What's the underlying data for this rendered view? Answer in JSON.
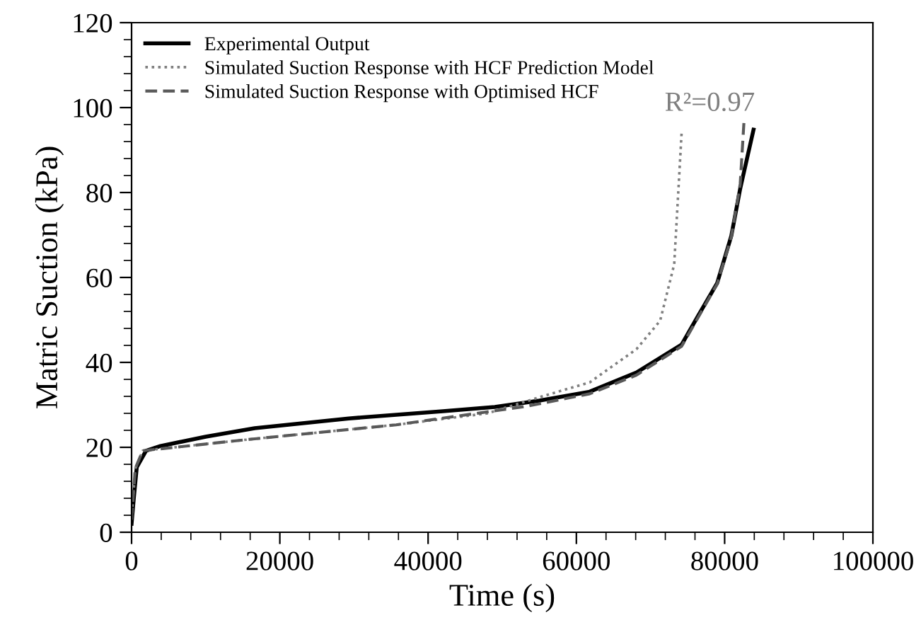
{
  "chart_data": {
    "type": "line",
    "xlabel": "Time (s)",
    "ylabel": "Matric Suction (kPa)",
    "xlim": [
      0,
      100000
    ],
    "xticks": [
      0,
      20000,
      40000,
      60000,
      80000,
      100000
    ],
    "ylim": [
      0,
      120
    ],
    "yticks": [
      0,
      20,
      40,
      60,
      80,
      100,
      120
    ],
    "grid": false,
    "legend": "top left",
    "series": [
      {
        "name": "Experimental Output",
        "color": "#000000",
        "line_style": "solid",
        "x": [
          0,
          300,
          700,
          1950,
          3900,
          10000,
          16600,
          29300,
          42000,
          49000,
          55000,
          61800,
          68100,
          74200,
          76400,
          79000,
          80900,
          82100,
          83900
        ],
        "values": [
          2,
          8,
          15.3,
          19.2,
          20.3,
          22.5,
          24.5,
          26.8,
          28.5,
          29.5,
          31,
          33.1,
          37.6,
          44.2,
          50.9,
          58.7,
          69.8,
          80.9,
          94.8
        ]
      },
      {
        "name": "Simulated Suction Response with HCF Prediction Model",
        "color": "#808080",
        "line_style": "dotted",
        "x": [
          0,
          500,
          1500,
          16600,
          35700,
          48000,
          55400,
          61800,
          68100,
          71300,
          73200,
          74200
        ],
        "values": [
          3,
          15,
          19.2,
          22,
          25.3,
          28,
          32,
          35.3,
          43.1,
          49.8,
          63.1,
          94.2
        ]
      },
      {
        "name": "Simulated Suction Response with Optimised HCF",
        "color": "#595959",
        "line_style": "dashed",
        "x": [
          0,
          500,
          1500,
          16600,
          35700,
          53400,
          61800,
          68100,
          74200,
          76400,
          79000,
          80900,
          82100,
          82600
        ],
        "values": [
          3,
          15,
          19.2,
          22,
          25.3,
          29.7,
          32.6,
          37,
          43.8,
          50.5,
          58.5,
          69.5,
          82,
          96.4
        ]
      }
    ],
    "annotations": [
      "R²=0.97"
    ]
  }
}
